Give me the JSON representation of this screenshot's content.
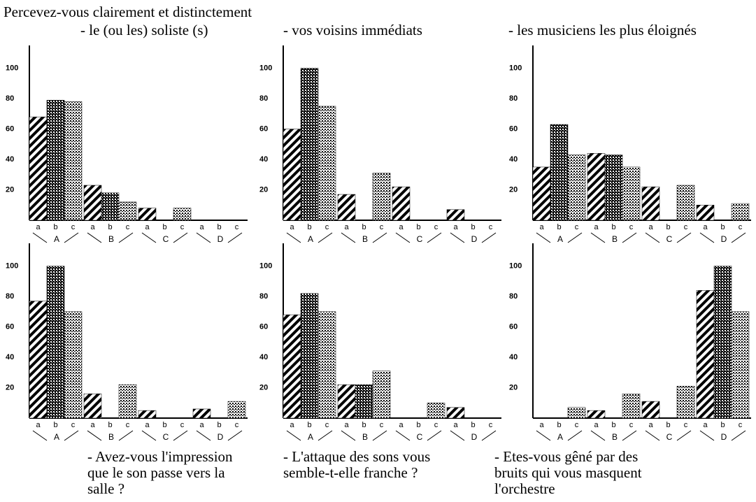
{
  "heading": "Percevez-vous clairement et distinctement",
  "chart_data": [
    {
      "type": "bar",
      "title": "- le (ou les) soliste (s)",
      "categories": [
        "A",
        "B",
        "C",
        "D"
      ],
      "series": [
        {
          "name": "a",
          "color": "#000000",
          "values": [
            68,
            23,
            8,
            0
          ]
        },
        {
          "name": "b",
          "color": "#000000",
          "values": [
            79,
            18,
            0,
            0
          ]
        },
        {
          "name": "c",
          "color": "#000000",
          "values": [
            78,
            12,
            8,
            0
          ]
        }
      ],
      "ylim": [
        0,
        115
      ],
      "yticks": [
        20,
        40,
        60,
        80,
        100
      ]
    },
    {
      "type": "bar",
      "title": "- vos voisins immédiats",
      "categories": [
        "A",
        "B",
        "C",
        "D"
      ],
      "series": [
        {
          "name": "a",
          "color": "#000000",
          "values": [
            60,
            17,
            22,
            7
          ]
        },
        {
          "name": "b",
          "color": "#000000",
          "values": [
            100,
            0,
            0,
            0
          ]
        },
        {
          "name": "c",
          "color": "#000000",
          "values": [
            75,
            31,
            0,
            0
          ]
        }
      ],
      "ylim": [
        0,
        115
      ],
      "yticks": [
        20,
        40,
        60,
        80,
        100
      ]
    },
    {
      "type": "bar",
      "title": "- les musiciens les plus éloignés",
      "categories": [
        "A",
        "B",
        "C",
        "D"
      ],
      "series": [
        {
          "name": "a",
          "color": "#000000",
          "values": [
            35,
            44,
            22,
            10
          ]
        },
        {
          "name": "b",
          "color": "#000000",
          "values": [
            63,
            43,
            0,
            0
          ]
        },
        {
          "name": "c",
          "color": "#000000",
          "values": [
            43,
            35,
            23,
            11
          ]
        }
      ],
      "ylim": [
        0,
        115
      ],
      "yticks": [
        20,
        40,
        60,
        80,
        100
      ]
    },
    {
      "type": "bar",
      "caption": [
        "- Avez-vous l'impression",
        "que le son passe vers la",
        "salle ?"
      ],
      "categories": [
        "A",
        "B",
        "C",
        "D"
      ],
      "series": [
        {
          "name": "a",
          "color": "#000000",
          "values": [
            77,
            16,
            5,
            6
          ]
        },
        {
          "name": "b",
          "color": "#000000",
          "values": [
            100,
            0,
            0,
            0
          ]
        },
        {
          "name": "c",
          "color": "#000000",
          "values": [
            70,
            22,
            0,
            11
          ]
        }
      ],
      "ylim": [
        0,
        115
      ],
      "yticks": [
        20,
        40,
        60,
        80,
        100
      ]
    },
    {
      "type": "bar",
      "caption": [
        "- L'attaque des sons vous",
        "semble-t-elle franche ?"
      ],
      "categories": [
        "A",
        "B",
        "C",
        "D"
      ],
      "series": [
        {
          "name": "a",
          "color": "#000000",
          "values": [
            68,
            22,
            0,
            7
          ]
        },
        {
          "name": "b",
          "color": "#000000",
          "values": [
            82,
            22,
            0,
            0
          ]
        },
        {
          "name": "c",
          "color": "#000000",
          "values": [
            70,
            31,
            10,
            0
          ]
        }
      ],
      "ylim": [
        0,
        115
      ],
      "yticks": [
        20,
        40,
        60,
        80,
        100
      ]
    },
    {
      "type": "bar",
      "caption": [
        "- Etes-vous gêné par des",
        "bruits qui vous masquent",
        "l'orchestre"
      ],
      "categories": [
        "A",
        "B",
        "C",
        "D"
      ],
      "series": [
        {
          "name": "a",
          "color": "#000000",
          "values": [
            0,
            5,
            11,
            84
          ]
        },
        {
          "name": "b",
          "color": "#000000",
          "values": [
            0,
            0,
            0,
            100
          ]
        },
        {
          "name": "c",
          "color": "#000000",
          "values": [
            7,
            16,
            21,
            70
          ]
        }
      ],
      "ylim": [
        0,
        115
      ],
      "yticks": [
        20,
        40,
        60,
        80,
        100
      ]
    }
  ]
}
